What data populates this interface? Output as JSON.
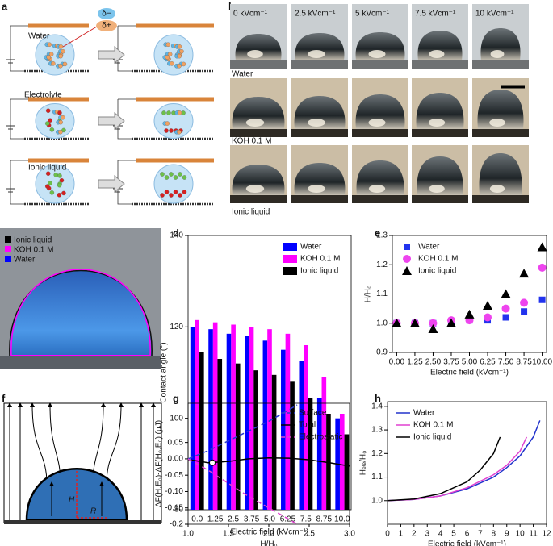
{
  "panel_labels": [
    "a",
    "b",
    "c",
    "d",
    "e",
    "f",
    "g",
    "h"
  ],
  "panel_a": {
    "rows": [
      "Water",
      "Electrolyte",
      "Ionic liquid"
    ],
    "dipole": [
      "δ−",
      "δ+"
    ]
  },
  "panel_b": {
    "columns": [
      "0 kVcm⁻¹",
      "2.5 kVcm⁻¹",
      "5 kVcm⁻¹",
      "7.5 kVcm⁻¹",
      "10 kVcm⁻¹"
    ],
    "rows": [
      "Water",
      "KOH 0.1 M",
      "Ionic liquid"
    ]
  },
  "panel_c": {
    "legend": [
      "Ionic liquid",
      "KOH  0.1 M",
      "Water"
    ]
  },
  "panel_f": {
    "labels": [
      "H",
      "R"
    ]
  },
  "chart_data": [
    {
      "type": "bar",
      "xlabel": "Electric field (kVcm⁻¹)",
      "ylabel": "Contact angle (°)",
      "categories": [
        "0.0",
        "1.25",
        "2.5",
        "3.75",
        "5.0",
        "6.25",
        "7.5",
        "8.75",
        "10.0"
      ],
      "series": [
        {
          "name": "Water",
          "color": "#0000ff",
          "values": [
            120,
            119.5,
            118.5,
            118,
            117,
            115,
            112.5,
            104.5,
            100
          ]
        },
        {
          "name": "KOH 0.1 M",
          "color": "#ff00ff",
          "values": [
            121.5,
            121,
            120.5,
            120,
            119.5,
            118.5,
            116,
            109,
            101
          ]
        },
        {
          "name": "Ionic liquid",
          "color": "#000000",
          "values": [
            114.5,
            113,
            112,
            110.5,
            109.5,
            108,
            104.5,
            101,
            96.5
          ]
        }
      ],
      "ylim": [
        80,
        140
      ],
      "yticks": [
        80,
        100,
        120,
        140
      ],
      "legend": "upper right"
    },
    {
      "type": "scatter",
      "xlabel": "Electric field (kVcm⁻¹)",
      "ylabel": "H/H₀",
      "x": [
        0,
        1.25,
        2.5,
        3.75,
        5,
        6.25,
        7.5,
        8.75,
        10
      ],
      "series": [
        {
          "name": "Water",
          "color": "#2233ee",
          "marker": "square",
          "values": [
            1.0,
            1.0,
            1.0,
            1.0,
            1.01,
            1.01,
            1.02,
            1.04,
            1.08
          ]
        },
        {
          "name": "KOH 0.1 M",
          "color": "#ee44ee",
          "marker": "circle",
          "values": [
            1.0,
            1.0,
            1.0,
            1.01,
            1.01,
            1.02,
            1.05,
            1.07,
            1.19
          ]
        },
        {
          "name": "Ionic liquid",
          "color": "#000000",
          "marker": "triangle",
          "values": [
            1.0,
            1.0,
            0.98,
            1.0,
            1.03,
            1.06,
            1.1,
            1.17,
            1.26
          ]
        }
      ],
      "xlim": [
        -0.3,
        10.3
      ],
      "xticks": [
        {
          "value": 0,
          "label": "0.00"
        },
        1.25,
        {
          "value": 2.5,
          "label": "2.50"
        },
        3.75,
        {
          "value": 5,
          "label": "5.00"
        },
        6.25,
        {
          "value": 7.5,
          "label": "7.50"
        },
        8.75,
        {
          "value": 10,
          "label": "10.00"
        }
      ],
      "ylim": [
        0.9,
        1.3
      ],
      "yticks": [
        0.9,
        {
          "value": 1,
          "label": "1.0"
        },
        1.1,
        1.2,
        1.3
      ],
      "legend": "upper left"
    },
    {
      "type": "line",
      "xlabel": "H/H₀",
      "ylabel": "ΔF(H,E₀)-ΔF(H₀,E₀) (μJ)",
      "series": [
        {
          "name": "Surface",
          "color": "#2a3ad0",
          "linestyle": "dashed",
          "x": [
            1.0,
            1.25,
            1.5,
            1.75,
            2.0,
            2.25,
            2.35
          ],
          "values": [
            0,
            0.025,
            0.055,
            0.085,
            0.115,
            0.15,
            0.165
          ]
        },
        {
          "name": "Total",
          "color": "#000000",
          "linestyle": "solid",
          "x": [
            1.0,
            1.25,
            1.5,
            1.75,
            2.0,
            2.25,
            2.5,
            2.75,
            3.0
          ],
          "values": [
            -0.002,
            -0.012,
            -0.008,
            0,
            0.003,
            0.002,
            -0.003,
            -0.012,
            -0.022
          ]
        },
        {
          "name": "Electrostatic",
          "color": "#e040d0",
          "linestyle": "dashed",
          "x": [
            1.0,
            1.25,
            1.5,
            1.75,
            2.0,
            2.25,
            2.35
          ],
          "values": [
            0,
            -0.035,
            -0.075,
            -0.115,
            -0.15,
            -0.185,
            -0.2
          ]
        }
      ],
      "point": {
        "x": 1.3,
        "y": -0.012
      },
      "xlim": [
        1,
        3
      ],
      "xticks": [
        {
          "value": 1,
          "label": "1.0"
        },
        1.5,
        {
          "value": 2,
          "label": "2.0"
        },
        2.5,
        {
          "value": 3,
          "label": "3.0"
        }
      ],
      "ylim": [
        -0.2,
        0.17
      ],
      "yticks": [
        -0.2,
        -0.15,
        {
          "value": -0.1,
          "label": "-0.10"
        },
        -0.05,
        {
          "value": 0,
          "label": "0.00"
        },
        0.05
      ],
      "legend": "center right"
    },
    {
      "type": "line",
      "xlabel": "Electric field (kVcm⁻¹)",
      "ylabel": "Hₑₗₑ/H₀",
      "series": [
        {
          "name": "Water",
          "color": "#2233cc",
          "linestyle": "solid",
          "x": [
            0,
            2,
            4,
            6,
            8,
            9,
            10,
            11,
            11.5
          ],
          "values": [
            1.0,
            1.005,
            1.02,
            1.05,
            1.1,
            1.14,
            1.19,
            1.27,
            1.34
          ]
        },
        {
          "name": "KOH 0.1 M",
          "color": "#e040d0",
          "linestyle": "solid",
          "x": [
            0,
            2,
            4,
            6,
            8,
            9,
            10,
            10.5
          ],
          "values": [
            1.0,
            1.005,
            1.02,
            1.055,
            1.11,
            1.15,
            1.21,
            1.27
          ]
        },
        {
          "name": "Ionic liquid",
          "color": "#000000",
          "linestyle": "solid",
          "x": [
            0,
            2,
            4,
            6,
            7,
            8,
            8.5
          ],
          "values": [
            1.0,
            1.007,
            1.03,
            1.08,
            1.13,
            1.2,
            1.27
          ]
        }
      ],
      "xlim": [
        0,
        12
      ],
      "xticks": [
        0,
        1,
        2,
        3,
        4,
        5,
        6,
        7,
        8,
        9,
        10,
        11,
        12
      ],
      "ylim": [
        0.9,
        1.42
      ],
      "yticks": [
        {
          "value": 1,
          "label": "1.0"
        },
        1.1,
        1.2,
        1.3,
        1.4
      ],
      "legend": "upper left"
    }
  ]
}
